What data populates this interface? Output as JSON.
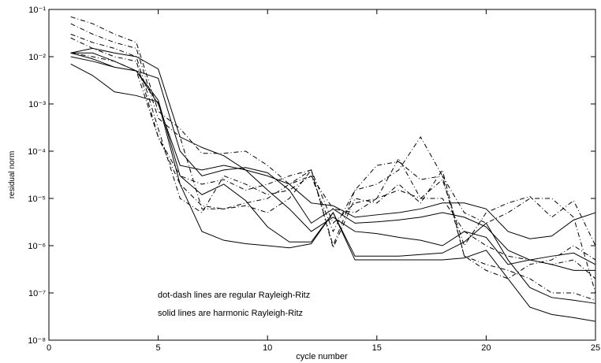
{
  "chart_data": {
    "type": "line",
    "xlabel": "cycle number",
    "ylabel": "residual norm",
    "annotations": [
      "dot-dash lines are regular Rayleigh-Ritz",
      "solid lines are harmonic Rayleigh-Ritz"
    ],
    "log_y": true,
    "xlim": [
      0,
      25
    ],
    "ylim": [
      1e-08,
      0.1
    ],
    "xticks": [
      0,
      5,
      10,
      15,
      20,
      25
    ],
    "yticks": [
      {
        "value": 1e-08,
        "label": "10⁻⁸"
      },
      {
        "value": 1e-07,
        "label": "10⁻⁷"
      },
      {
        "value": 1e-06,
        "label": "10⁻⁶"
      },
      {
        "value": 1e-05,
        "label": "10⁻⁵"
      },
      {
        "value": 0.0001,
        "label": "10⁻⁴"
      },
      {
        "value": 0.001,
        "label": "10⁻³"
      },
      {
        "value": 0.01,
        "label": "10⁻²"
      },
      {
        "value": 0.1,
        "label": "10⁻¹"
      }
    ],
    "x": [
      1,
      2,
      3,
      4,
      5,
      6,
      7,
      8,
      9,
      10,
      11,
      12,
      13,
      14,
      15,
      16,
      17,
      18,
      19,
      20,
      21,
      22,
      23,
      24,
      25
    ],
    "series": [
      {
        "color": "#000000",
        "style": "solid",
        "values": [
          0.007,
          0.004,
          0.0018,
          0.0015,
          0.0011,
          2e-05,
          2e-06,
          1.3e-06,
          1.1e-06,
          1e-06,
          9e-07,
          1.1e-06,
          5e-06,
          5e-07,
          5e-07,
          5e-07,
          5e-07,
          5e-07,
          5.5e-07,
          8e-07,
          2e-07,
          5e-08,
          3.5e-08,
          3e-08,
          2.5e-08
        ]
      },
      {
        "color": "#000000",
        "style": "solid",
        "values": [
          0.012,
          0.015,
          0.012,
          0.01,
          0.0055,
          0.0002,
          0.00012,
          8e-05,
          4e-05,
          3e-05,
          2e-05,
          8e-06,
          7e-06,
          4e-06,
          4.5e-06,
          5e-06,
          6e-06,
          8e-06,
          8e-06,
          6e-06,
          2e-06,
          1.4e-06,
          1.6e-06,
          3.5e-06,
          5e-06
        ]
      },
      {
        "color": "#000000",
        "style": "solid",
        "values": [
          0.012,
          0.009,
          0.006,
          0.005,
          0.0035,
          0.0001,
          3e-05,
          4e-05,
          4.5e-05,
          3.5e-05,
          1.5e-05,
          3e-06,
          6e-06,
          3e-06,
          3.2e-06,
          3.5e-06,
          4e-06,
          5e-06,
          4e-06,
          2.5e-06,
          8e-07,
          5e-07,
          6e-07,
          7e-07,
          4e-07
        ]
      },
      {
        "color": "#000000",
        "style": "solid",
        "values": [
          0.012,
          0.012,
          0.008,
          0.005,
          0.0012,
          3e-05,
          1.2e-05,
          2e-05,
          9e-06,
          2.5e-06,
          1.2e-06,
          1.2e-06,
          5e-06,
          6e-07,
          6e-07,
          6e-07,
          6.5e-07,
          7e-07,
          1.2e-06,
          3e-06,
          5e-07,
          1.3e-07,
          8e-08,
          7e-08,
          6e-08
        ]
      },
      {
        "color": "#000000",
        "style": "solid",
        "values": [
          0.01,
          0.008,
          0.006,
          0.005,
          0.001,
          5e-05,
          4e-05,
          5e-05,
          4e-05,
          1.5e-05,
          6e-06,
          2e-06,
          4e-06,
          2e-06,
          1.8e-06,
          1.5e-06,
          1.3e-06,
          1e-06,
          2e-06,
          1.5e-06,
          4e-07,
          5e-07,
          4e-07,
          3e-07,
          3e-07
        ]
      },
      {
        "color": "#000000",
        "style": "dashdot",
        "values": [
          0.07,
          0.05,
          0.03,
          0.02,
          0.0007,
          0.0003,
          9e-05,
          9e-05,
          0.0001,
          5e-05,
          2e-05,
          4e-05,
          1e-06,
          1.5e-05,
          2e-05,
          4e-05,
          0.0002,
          3e-05,
          6e-07,
          3e-07,
          2e-07,
          4e-07,
          5e-07,
          1e-06,
          5e-07
        ]
      },
      {
        "color": "#000000",
        "style": "dashdot",
        "values": [
          0.05,
          0.03,
          0.02,
          0.015,
          0.0005,
          0.0002,
          6e-06,
          6e-06,
          7e-06,
          5e-06,
          1e-05,
          4e-05,
          9e-07,
          1e-05,
          8e-06,
          2e-05,
          8e-06,
          4e-05,
          6e-07,
          4e-07,
          3e-07,
          2e-07,
          1e-07,
          1e-07,
          7e-08
        ]
      },
      {
        "color": "#000000",
        "style": "dashdot",
        "values": [
          0.03,
          0.02,
          0.015,
          0.01,
          0.0003,
          1e-05,
          5e-06,
          3e-05,
          2e-05,
          1.2e-05,
          1.5e-05,
          3e-05,
          2e-06,
          1.5e-05,
          5e-05,
          6e-05,
          2.5e-05,
          3e-05,
          5e-06,
          3e-06,
          5e-06,
          1e-05,
          1e-05,
          4e-06,
          1e-07
        ]
      },
      {
        "color": "#000000",
        "style": "dashdot",
        "values": [
          0.025,
          0.015,
          0.01,
          0.008,
          0.0002,
          3e-05,
          2e-05,
          2.5e-05,
          1.5e-05,
          2e-05,
          3e-05,
          4e-05,
          3e-06,
          8e-06,
          1e-05,
          7e-05,
          1e-05,
          2.5e-05,
          1e-06,
          5e-06,
          8e-06,
          1.1e-05,
          4e-06,
          9e-06,
          1e-06
        ]
      },
      {
        "color": "#000000",
        "style": "dashdot",
        "values": [
          0.012,
          0.01,
          0.008,
          0.005,
          0.0002,
          2e-05,
          7e-06,
          6e-06,
          8e-06,
          1e-05,
          2e-05,
          3e-05,
          6e-06,
          5e-06,
          1e-05,
          1.5e-05,
          1e-05,
          1e-05,
          2e-06,
          1e-06,
          6e-07,
          5e-07,
          4e-07,
          5e-07,
          2e-07
        ]
      }
    ]
  }
}
